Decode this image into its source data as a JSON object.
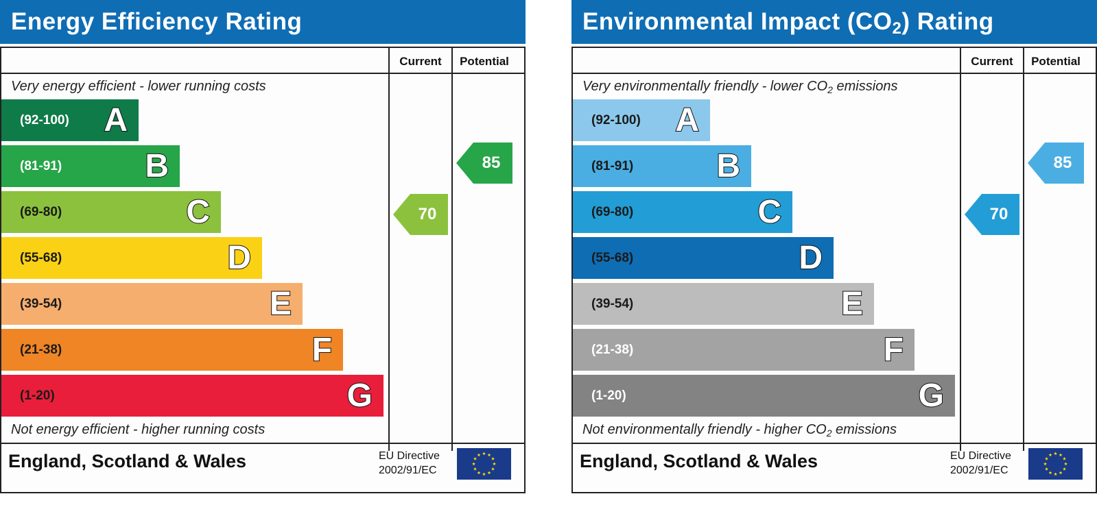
{
  "energy": {
    "title": "Energy Efficiency Rating",
    "col_current": "Current",
    "col_potential": "Potential",
    "top_caption": "Very energy efficient - lower running costs",
    "bottom_caption": "Not energy efficient - higher running costs",
    "bands": [
      {
        "range": "(92-100)",
        "letter": "A",
        "color": "#0f7b49",
        "text_color": "#ffffff"
      },
      {
        "range": "(81-91)",
        "letter": "B",
        "color": "#27a549",
        "text_color": "#ffffff"
      },
      {
        "range": "(69-80)",
        "letter": "C",
        "color": "#8cc13e",
        "text_color": "#1a1a1a"
      },
      {
        "range": "(55-68)",
        "letter": "D",
        "color": "#fad114",
        "text_color": "#1a1a1a"
      },
      {
        "range": "(39-54)",
        "letter": "E",
        "color": "#f6ae6e",
        "text_color": "#1a1a1a"
      },
      {
        "range": "(21-38)",
        "letter": "F",
        "color": "#ef8525",
        "text_color": "#1a1a1a"
      },
      {
        "range": "(1-20)",
        "letter": "G",
        "color": "#e81e3a",
        "text_color": "#1a1a1a"
      }
    ],
    "current": {
      "value": "70",
      "band": "C",
      "color": "#8cc13e"
    },
    "potential": {
      "value": "85",
      "band": "B",
      "color": "#27a549"
    },
    "footer_region": "England, Scotland & Wales",
    "eu_directive_line1": "EU Directive",
    "eu_directive_line2": "2002/91/EC"
  },
  "environment": {
    "title_pre": "Environmental Impact (CO",
    "title_sub": "2",
    "title_post": ") Rating",
    "col_current": "Current",
    "col_potential": "Potential",
    "top_caption_pre": "Very environmentally friendly - lower CO",
    "top_caption_sub": "2",
    "top_caption_post": " emissions",
    "bottom_caption_pre": "Not environmentally friendly - higher CO",
    "bottom_caption_sub": "2",
    "bottom_caption_post": " emissions",
    "bands": [
      {
        "range": "(92-100)",
        "letter": "A",
        "color": "#8cc8ec",
        "text_color": "#1a1a1a"
      },
      {
        "range": "(81-91)",
        "letter": "B",
        "color": "#4aaee2",
        "text_color": "#1a1a1a"
      },
      {
        "range": "(69-80)",
        "letter": "C",
        "color": "#229dd6",
        "text_color": "#1a1a1a"
      },
      {
        "range": "(55-68)",
        "letter": "D",
        "color": "#0f6db4",
        "text_color": "#1a1a1a"
      },
      {
        "range": "(39-54)",
        "letter": "E",
        "color": "#bdbcbc",
        "text_color": "#1a1a1a"
      },
      {
        "range": "(21-38)",
        "letter": "F",
        "color": "#a3a3a3",
        "text_color": "#ffffff"
      },
      {
        "range": "(1-20)",
        "letter": "G",
        "color": "#838383",
        "text_color": "#ffffff"
      }
    ],
    "current": {
      "value": "70",
      "band": "C",
      "color": "#229dd6"
    },
    "potential": {
      "value": "85",
      "band": "B",
      "color": "#4aaee2"
    },
    "footer_region": "England, Scotland & Wales",
    "eu_directive_line1": "EU Directive",
    "eu_directive_line2": "2002/91/EC"
  },
  "colors": {
    "header_blue": "#0f6db4",
    "flag_blue": "#1a3a8a",
    "flag_star": "#ffdd00"
  },
  "icons": {
    "eu_flag": "eu-flag-icon"
  }
}
